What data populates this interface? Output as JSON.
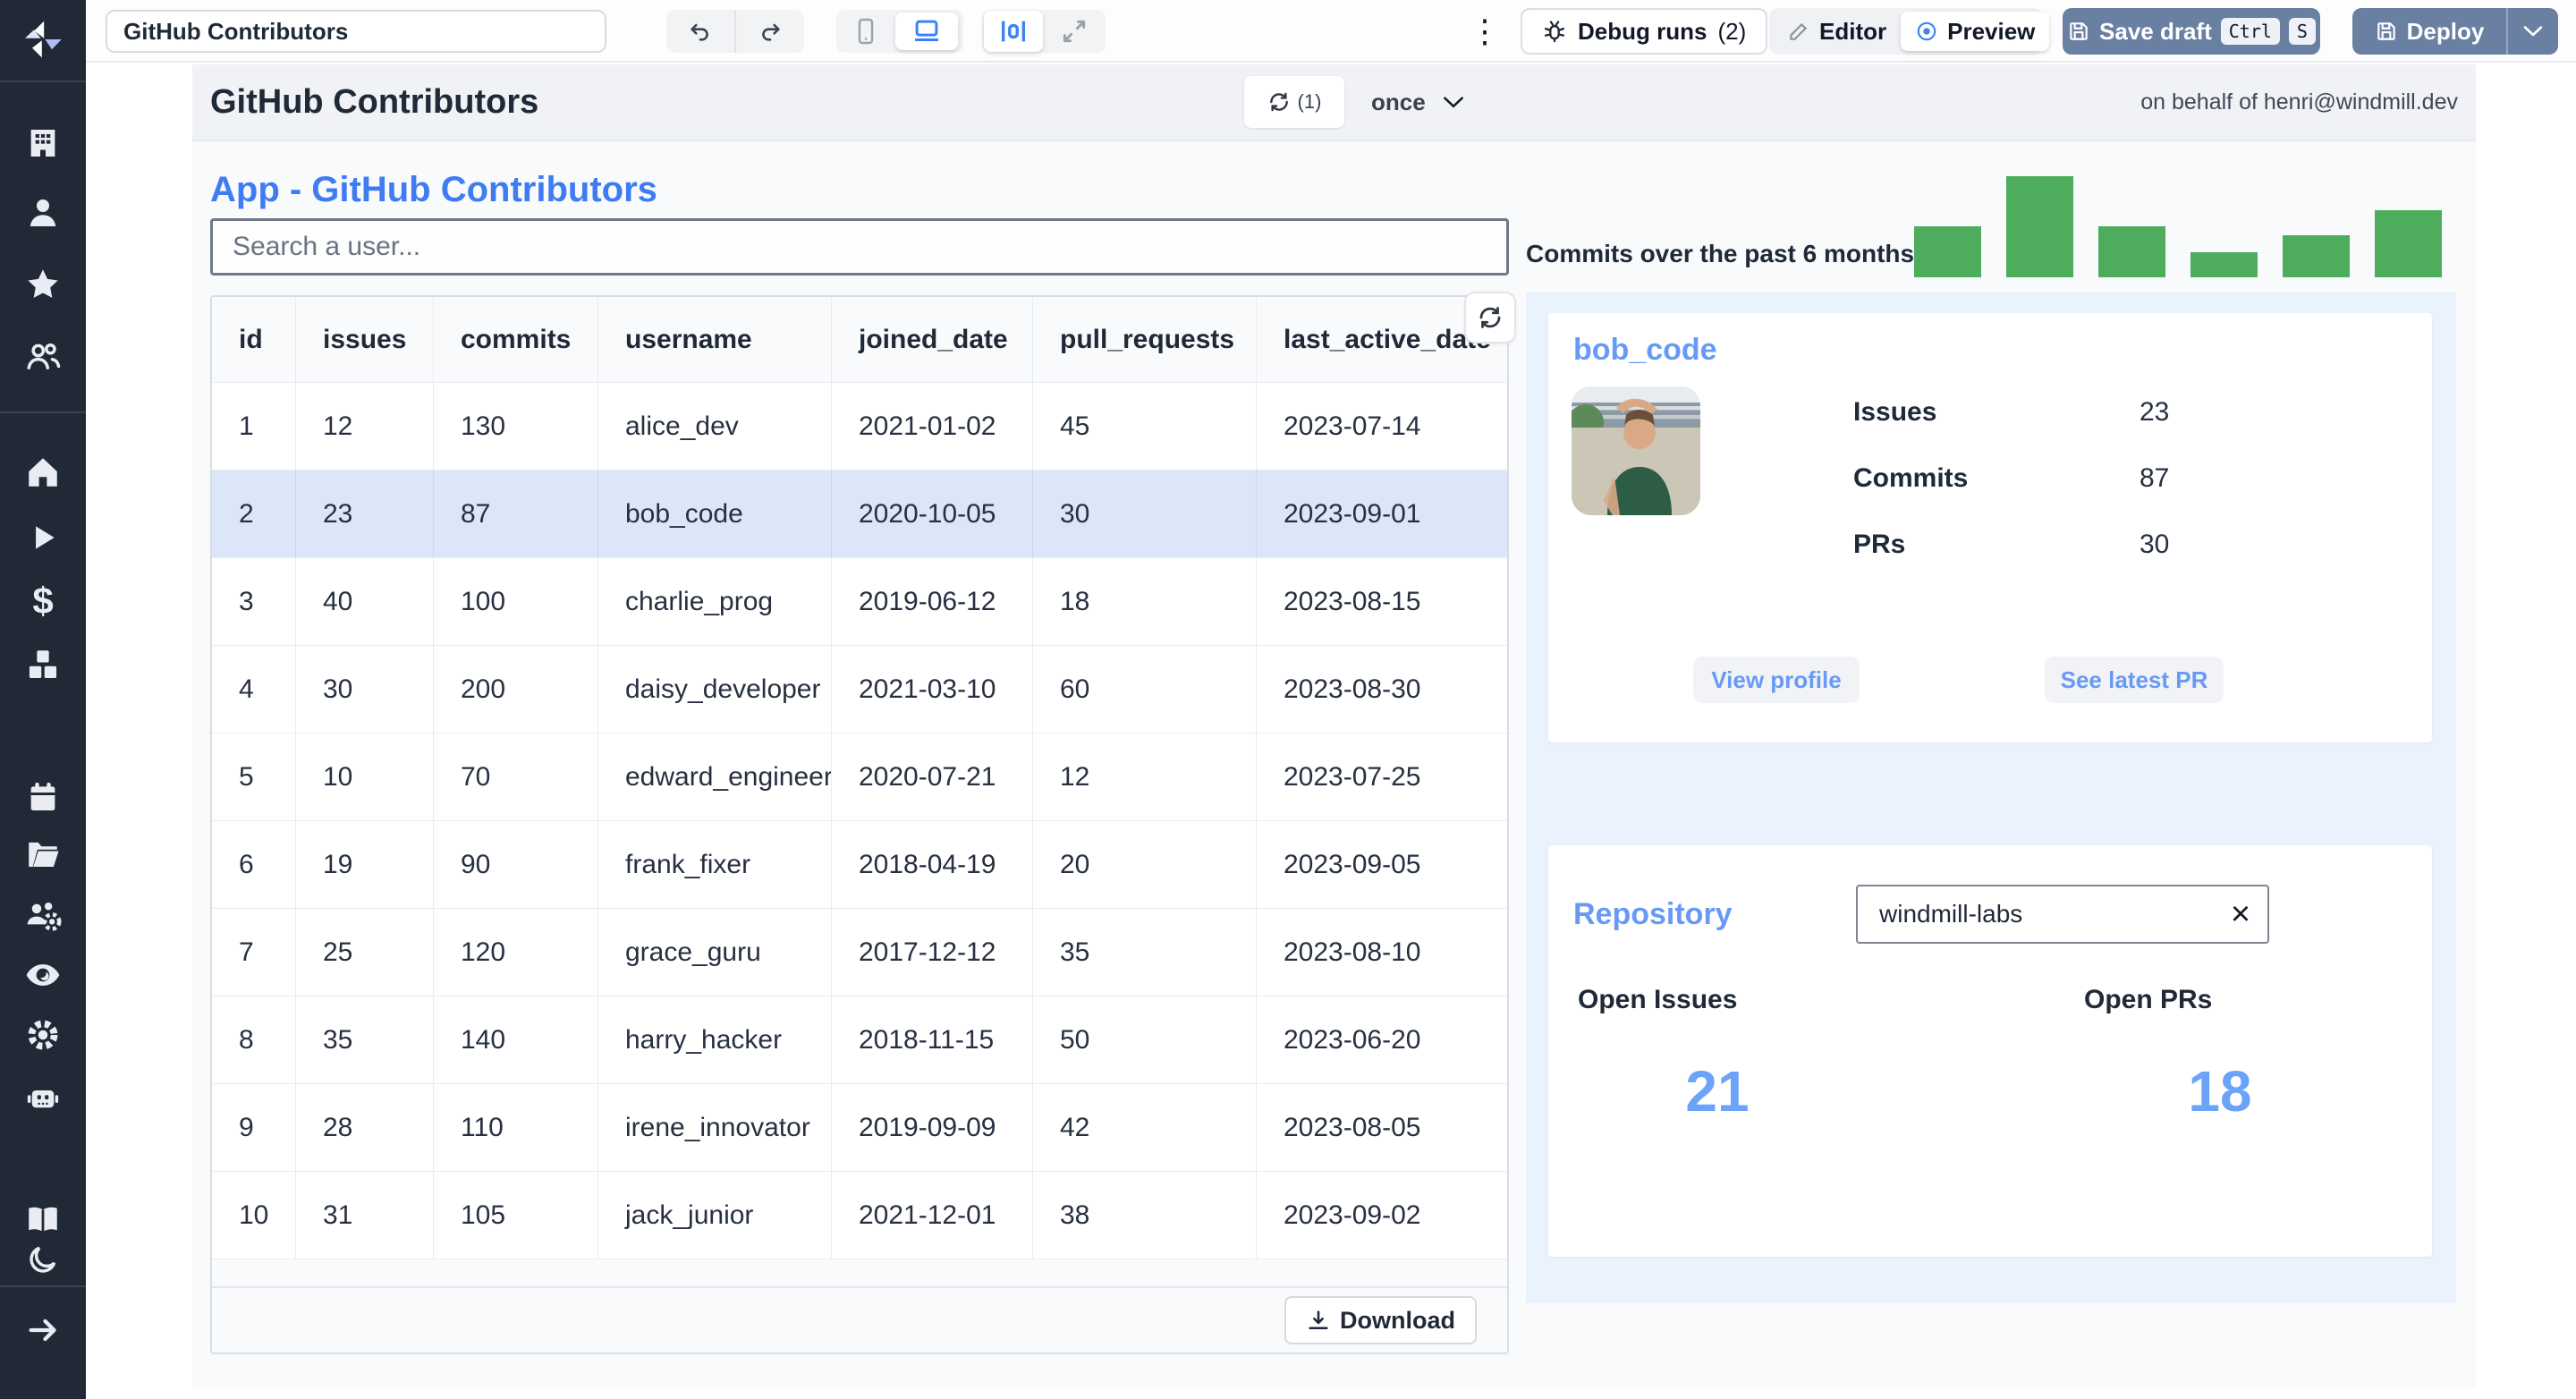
{
  "topbar": {
    "app_name_input": "GitHub Contributors",
    "debug_runs_label": "Debug runs",
    "debug_runs_count": "(2)",
    "editor_label": "Editor",
    "preview_label": "Preview",
    "save_draft_label": "Save draft",
    "kbd_ctrl": "Ctrl",
    "kbd_s": "S",
    "deploy_label": "Deploy"
  },
  "header": {
    "title": "GitHub Contributors",
    "recompute_count": "(1)",
    "schedule_mode": "once",
    "on_behalf_of": "on behalf of henri@windmill.dev"
  },
  "main": {
    "app_heading": "App - GitHub Contributors",
    "search_placeholder": "Search a user...",
    "download_label": "Download"
  },
  "table": {
    "columns": [
      "id",
      "issues",
      "commits",
      "username",
      "joined_date",
      "pull_requests",
      "last_active_date"
    ],
    "selected_username": "bob_code",
    "rows": [
      [
        "1",
        "12",
        "130",
        "alice_dev",
        "2021-01-02",
        "45",
        "2023-07-14"
      ],
      [
        "2",
        "23",
        "87",
        "bob_code",
        "2020-10-05",
        "30",
        "2023-09-01"
      ],
      [
        "3",
        "40",
        "100",
        "charlie_prog",
        "2019-06-12",
        "18",
        "2023-08-15"
      ],
      [
        "4",
        "30",
        "200",
        "daisy_developer",
        "2021-03-10",
        "60",
        "2023-08-30"
      ],
      [
        "5",
        "10",
        "70",
        "edward_engineer",
        "2020-07-21",
        "12",
        "2023-07-25"
      ],
      [
        "6",
        "19",
        "90",
        "frank_fixer",
        "2018-04-19",
        "20",
        "2023-09-05"
      ],
      [
        "7",
        "25",
        "120",
        "grace_guru",
        "2017-12-12",
        "35",
        "2023-08-10"
      ],
      [
        "8",
        "35",
        "140",
        "harry_hacker",
        "2018-11-15",
        "50",
        "2023-06-20"
      ],
      [
        "9",
        "28",
        "110",
        "irene_innovator",
        "2019-09-09",
        "42",
        "2023-08-05"
      ],
      [
        "10",
        "31",
        "105",
        "jack_junior",
        "2021-12-01",
        "38",
        "2023-09-02"
      ]
    ]
  },
  "chart_data": {
    "type": "bar",
    "title": "Commits over the past 6 months:",
    "categories": [
      "",
      "",
      "",
      "",
      "",
      ""
    ],
    "values": [
      50,
      100,
      50,
      25,
      42,
      66
    ],
    "xlabel": "",
    "ylabel": "",
    "ylim": [
      0,
      100
    ],
    "grid": false,
    "legend": "none",
    "bar_color": "#4dad5c"
  },
  "user_card": {
    "title": "bob_code",
    "stats": [
      {
        "label": "Issues",
        "value": "23"
      },
      {
        "label": "Commits",
        "value": "87"
      },
      {
        "label": "PRs",
        "value": "30"
      }
    ],
    "view_profile_label": "View profile",
    "see_latest_pr_label": "See latest PR"
  },
  "repo_card": {
    "title": "Repository",
    "repo_input_value": "windmill-labs",
    "open_issues_label": "Open Issues",
    "open_issues_value": "21",
    "open_prs_label": "Open PRs",
    "open_prs_value": "18"
  },
  "sidebar": {
    "icons": [
      "windmill-logo",
      "workspace",
      "user",
      "favorites",
      "groups",
      "home",
      "runs",
      "variables",
      "resources",
      "schedules",
      "folders",
      "workers",
      "audit-logs",
      "settings",
      "ai",
      "docs",
      "dark-mode",
      "collapse-sidebar"
    ]
  },
  "colors": {
    "accent_blue": "#3b82f6",
    "heading_blue": "#3f7cf3",
    "card_title_blue": "#689af5",
    "stat_number_blue": "#6ba3f8",
    "bar_green": "#4dad5c",
    "selected_row_blue": "#dbe6f8",
    "panel_blue": "#e9f2fd",
    "sidebar_bg": "#222936",
    "action_button_blue_gray": "#6a80a3"
  }
}
